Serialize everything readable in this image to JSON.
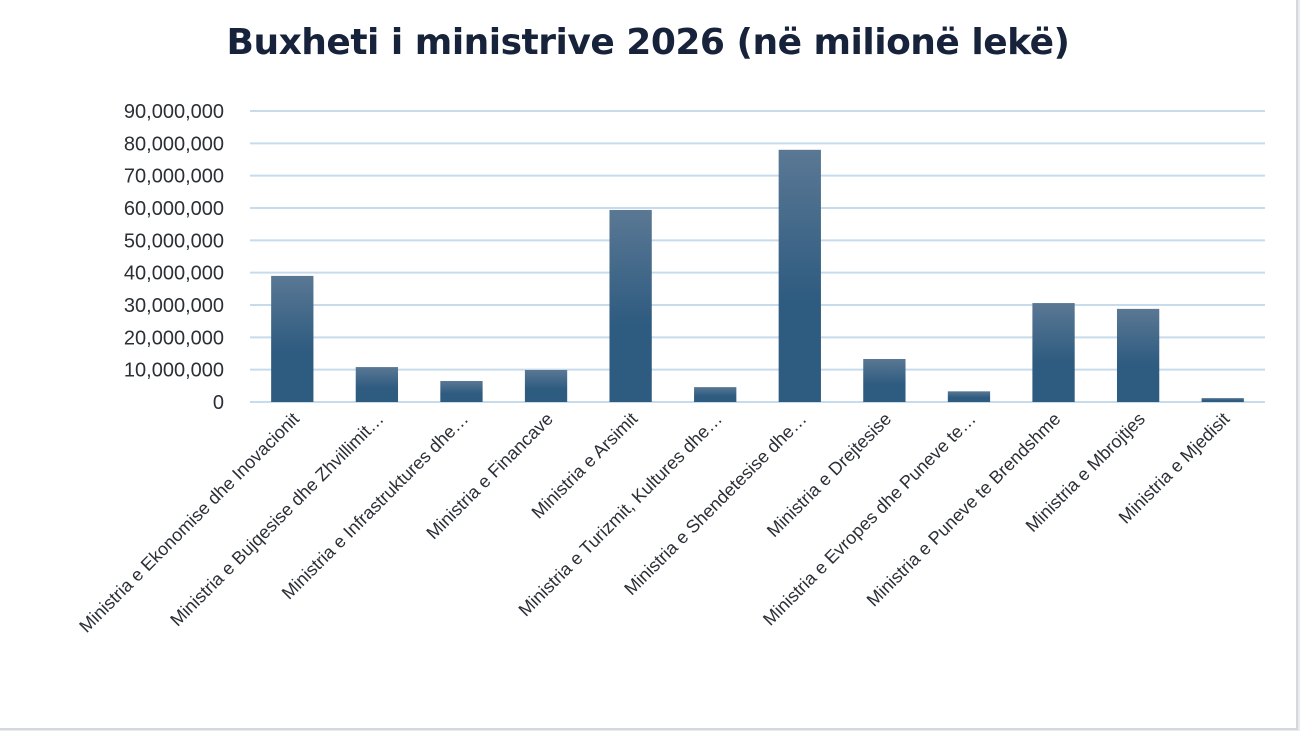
{
  "chart_data": {
    "type": "bar",
    "title": "Buxheti i ministrive 2026 (në milionë lekë)",
    "categories": [
      "Ministria e Ekonomise dhe Inovacionit",
      "Ministria e Bujqesise dhe Zhvillimit…",
      "Ministria e Infrastruktures dhe…",
      "Ministria e Financave",
      "Ministria e Arsimit",
      "Ministria e Turizmit, Kultures dhe…",
      "Ministria e Shendetesise dhe…",
      "Ministria e Drejtesise",
      "Ministria e Evropes dhe Puneve te…",
      "Ministria e Puneve te Brendshme",
      "Ministria e Mbrojtjes",
      "Ministria e Mjedisit"
    ],
    "values": [
      39000000,
      10800000,
      6500000,
      9900000,
      59400000,
      4600000,
      78000000,
      13300000,
      3300000,
      30600000,
      28800000,
      1200000
    ],
    "yticks": [
      "0",
      "10,000,000",
      "20,000,000",
      "30,000,000",
      "40,000,000",
      "50,000,000",
      "60,000,000",
      "70,000,000",
      "80,000,000",
      "90,000,000"
    ],
    "ylim": [
      0,
      90000000
    ],
    "grid": true,
    "colors": {
      "bar_top": "#5a7894",
      "bar_bottom": "#2e5b80",
      "grid": "#c6dcec",
      "axis": "#c6dcec"
    }
  }
}
